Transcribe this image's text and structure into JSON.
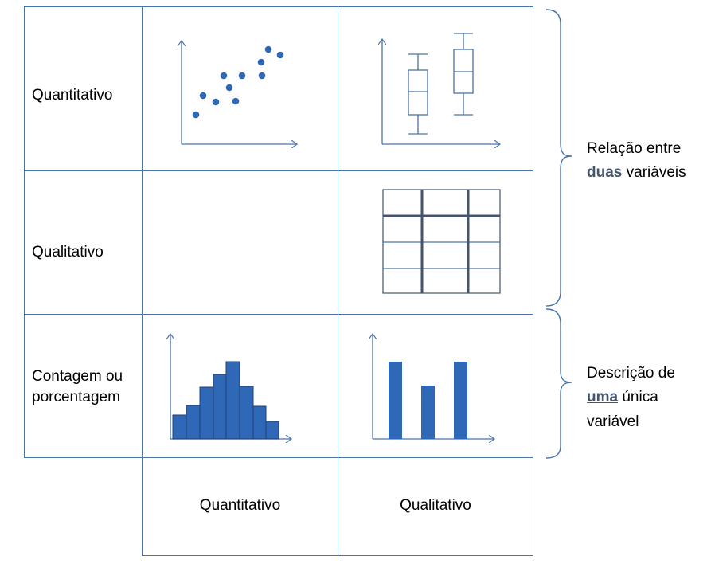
{
  "rows": {
    "row1": "Quantitativo",
    "row2": "Qualitativo",
    "row3_line1": "Contagem ou",
    "row3_line2": "porcentagem"
  },
  "cols": {
    "col1": "Quantitativo",
    "col2": "Qualitativo"
  },
  "brace_top": {
    "line1": "Relação entre",
    "emph": "duas",
    "rest": "variáveis"
  },
  "brace_bottom": {
    "line1": "Descrição de",
    "emph": "uma",
    "rest": "única",
    "line3": "variável"
  },
  "colors": {
    "grid": "#4a74a8",
    "marks": "#3068b8",
    "table_lines": "#44546a",
    "emphasis": "#44546a"
  },
  "icons": [
    "scatter-plot-icon",
    "boxplot-icon",
    "contingency-table-icon",
    "histogram-icon",
    "bar-chart-icon",
    "curly-brace-icon"
  ]
}
